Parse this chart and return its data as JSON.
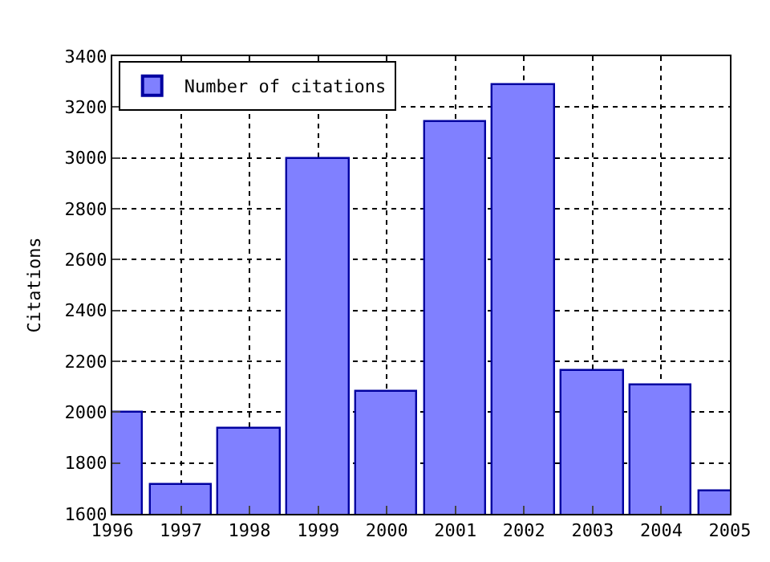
{
  "chart_data": {
    "type": "bar",
    "ylabel": "Citations",
    "x": [
      1996,
      1997,
      1998,
      1999,
      2000,
      2001,
      2002,
      2003,
      2004,
      2005
    ],
    "series": [
      {
        "name": "Number of citations",
        "color": "#8080ff",
        "values": [
          1995,
          1712,
          1932,
          2995,
          2081,
          3141,
          3284,
          2165,
          2107,
          1686
        ]
      }
    ],
    "xlim": [
      1996,
      2005
    ],
    "xticks": [
      1996,
      1997,
      1998,
      1999,
      2000,
      2001,
      2002,
      2003,
      2004,
      2005
    ],
    "ylim": [
      1600,
      3400
    ],
    "yticks": [
      1600,
      1800,
      2000,
      2200,
      2400,
      2600,
      2800,
      3000,
      3200,
      3400
    ],
    "grid": true,
    "legend": "top left"
  }
}
